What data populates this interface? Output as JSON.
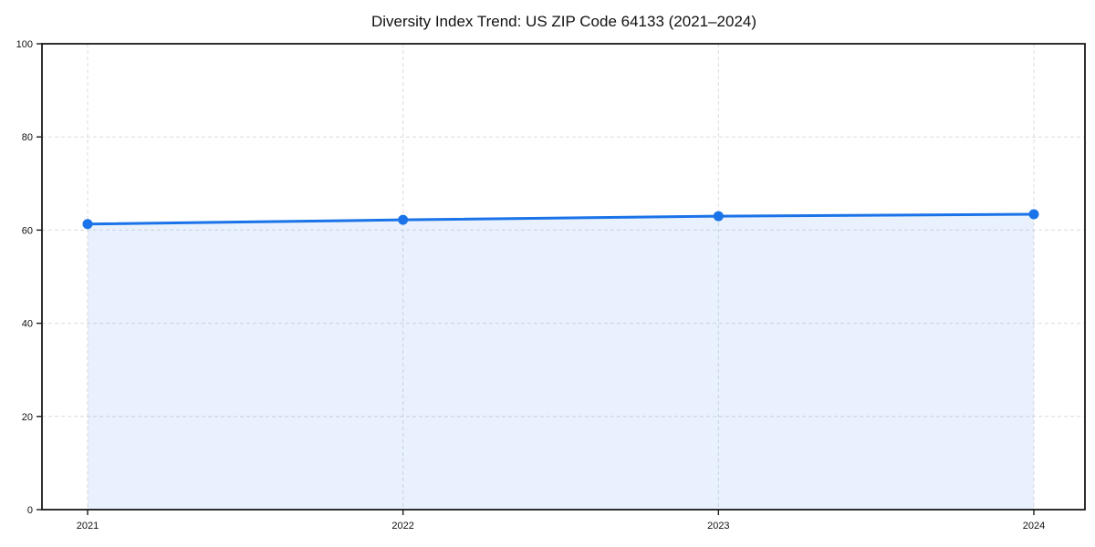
{
  "chart_data": {
    "type": "area",
    "title": "Diversity Index Trend: US ZIP Code 64133 (2021–2024)",
    "x": [
      "2021",
      "2022",
      "2023",
      "2024"
    ],
    "series": [
      {
        "name": "Diversity Index",
        "values": [
          61.3,
          62.2,
          63.0,
          63.4
        ]
      }
    ],
    "xlabel": "",
    "ylabel": "",
    "ylim": [
      0,
      100
    ],
    "yticks": [
      0,
      20,
      40,
      60,
      80,
      100
    ],
    "grid": "dashed-both-axes",
    "legend_position": "none",
    "colors": {
      "line": "#1a73e8",
      "marker": "#1a73e8",
      "area_fill": "rgba(26,115,232,0.10)",
      "gridline": "#dcdcdc",
      "frame": "#1a1a1a",
      "tick_text": "#111111",
      "title_text": "#111111",
      "background": "#ffffff"
    }
  }
}
